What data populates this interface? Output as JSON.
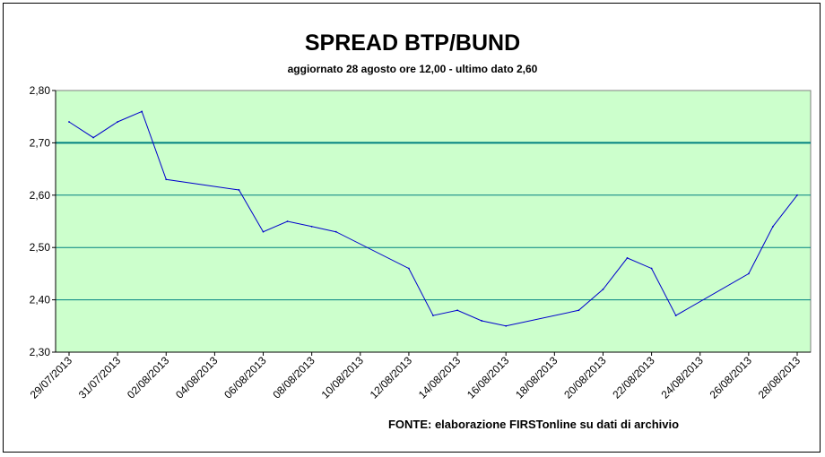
{
  "chart_data": {
    "type": "line",
    "title": "SPREAD BTP/BUND",
    "subtitle": "aggiornato 28 agosto ore 12,00  -  ultimo dato 2,60",
    "source": "FONTE:  elaborazione FIRSTonline su dati di archivio",
    "ylim": [
      2.3,
      2.8
    ],
    "y_ticks": [
      "2,80",
      "2,70",
      "2,60",
      "2,50",
      "2,40",
      "2,30"
    ],
    "y_tick_values": [
      2.8,
      2.7,
      2.6,
      2.5,
      2.4,
      2.3
    ],
    "x_ticks": [
      "29/07/2013",
      "31/07/2013",
      "02/08/2013",
      "04/08/2013",
      "06/08/2013",
      "08/08/2013",
      "10/08/2013",
      "12/08/2013",
      "14/08/2013",
      "16/08/2013",
      "18/08/2013",
      "20/08/2013",
      "22/08/2013",
      "24/08/2013",
      "26/08/2013",
      "28/08/2013"
    ],
    "x_start_date": "29/07/2013",
    "x_end_date": "28/08/2013",
    "grid": "horizontal",
    "highlight_line_value": 2.7,
    "series": [
      {
        "color": "#0000cc",
        "points": [
          [
            "29/07/2013",
            2.74
          ],
          [
            "30/07/2013",
            2.71
          ],
          [
            "31/07/2013",
            2.74
          ],
          [
            "01/08/2013",
            2.76
          ],
          [
            "02/08/2013",
            2.63
          ],
          [
            "05/08/2013",
            2.61
          ],
          [
            "06/08/2013",
            2.53
          ],
          [
            "07/08/2013",
            2.55
          ],
          [
            "08/08/2013",
            2.54
          ],
          [
            "09/08/2013",
            2.53
          ],
          [
            "12/08/2013",
            2.46
          ],
          [
            "13/08/2013",
            2.37
          ],
          [
            "14/08/2013",
            2.38
          ],
          [
            "15/08/2013",
            2.36
          ],
          [
            "16/08/2013",
            2.35
          ],
          [
            "19/08/2013",
            2.38
          ],
          [
            "20/08/2013",
            2.42
          ],
          [
            "21/08/2013",
            2.48
          ],
          [
            "22/08/2013",
            2.46
          ],
          [
            "23/08/2013",
            2.37
          ],
          [
            "26/08/2013",
            2.45
          ],
          [
            "27/08/2013",
            2.54
          ],
          [
            "28/08/2013",
            2.6
          ]
        ]
      }
    ],
    "colors": {
      "plot_background": "#ccffcc",
      "grid": "#008080",
      "line": "#0000cc",
      "axis": "#000000"
    }
  }
}
